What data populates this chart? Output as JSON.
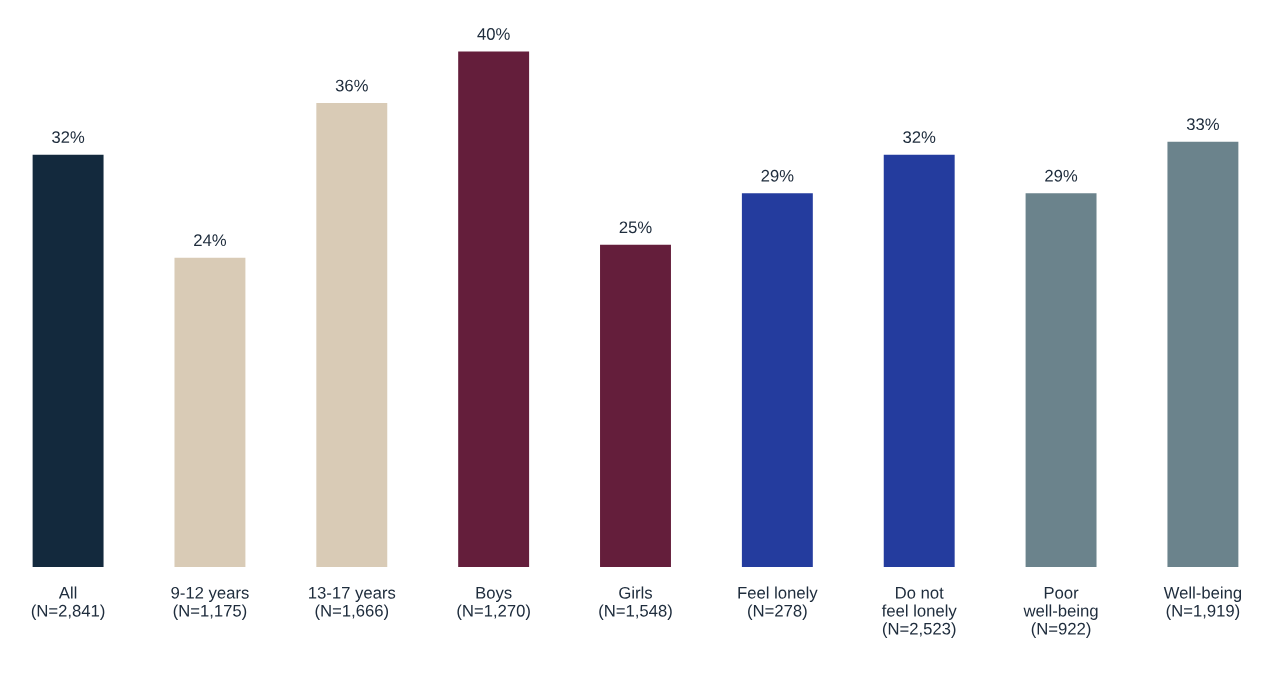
{
  "chart_data": {
    "type": "bar",
    "categories": [
      "All\n(N=2,841)",
      "9-12 years\n(N=1,175)",
      "13-17 years\n(N=1,666)",
      "Boys\n(N=1,270)",
      "Girls\n(N=1,548)",
      "Feel lonely\n(N=278)",
      "Do not\nfeel lonely\n(N=2,523)",
      "Poor\nwell-being\n(N=922)",
      "Well-being\n(N=1,919)"
    ],
    "values": [
      32,
      24,
      36,
      40,
      25,
      29,
      32,
      29,
      33
    ],
    "colors": [
      "#13293d",
      "#d9cbb6",
      "#d9cbb6",
      "#641e3b",
      "#641e3b",
      "#243c9e",
      "#243c9e",
      "#6b838c",
      "#6b838c"
    ],
    "value_labels": [
      "32%",
      "24%",
      "36%",
      "40%",
      "25%",
      "29%",
      "32%",
      "29%",
      "33%"
    ]
  }
}
